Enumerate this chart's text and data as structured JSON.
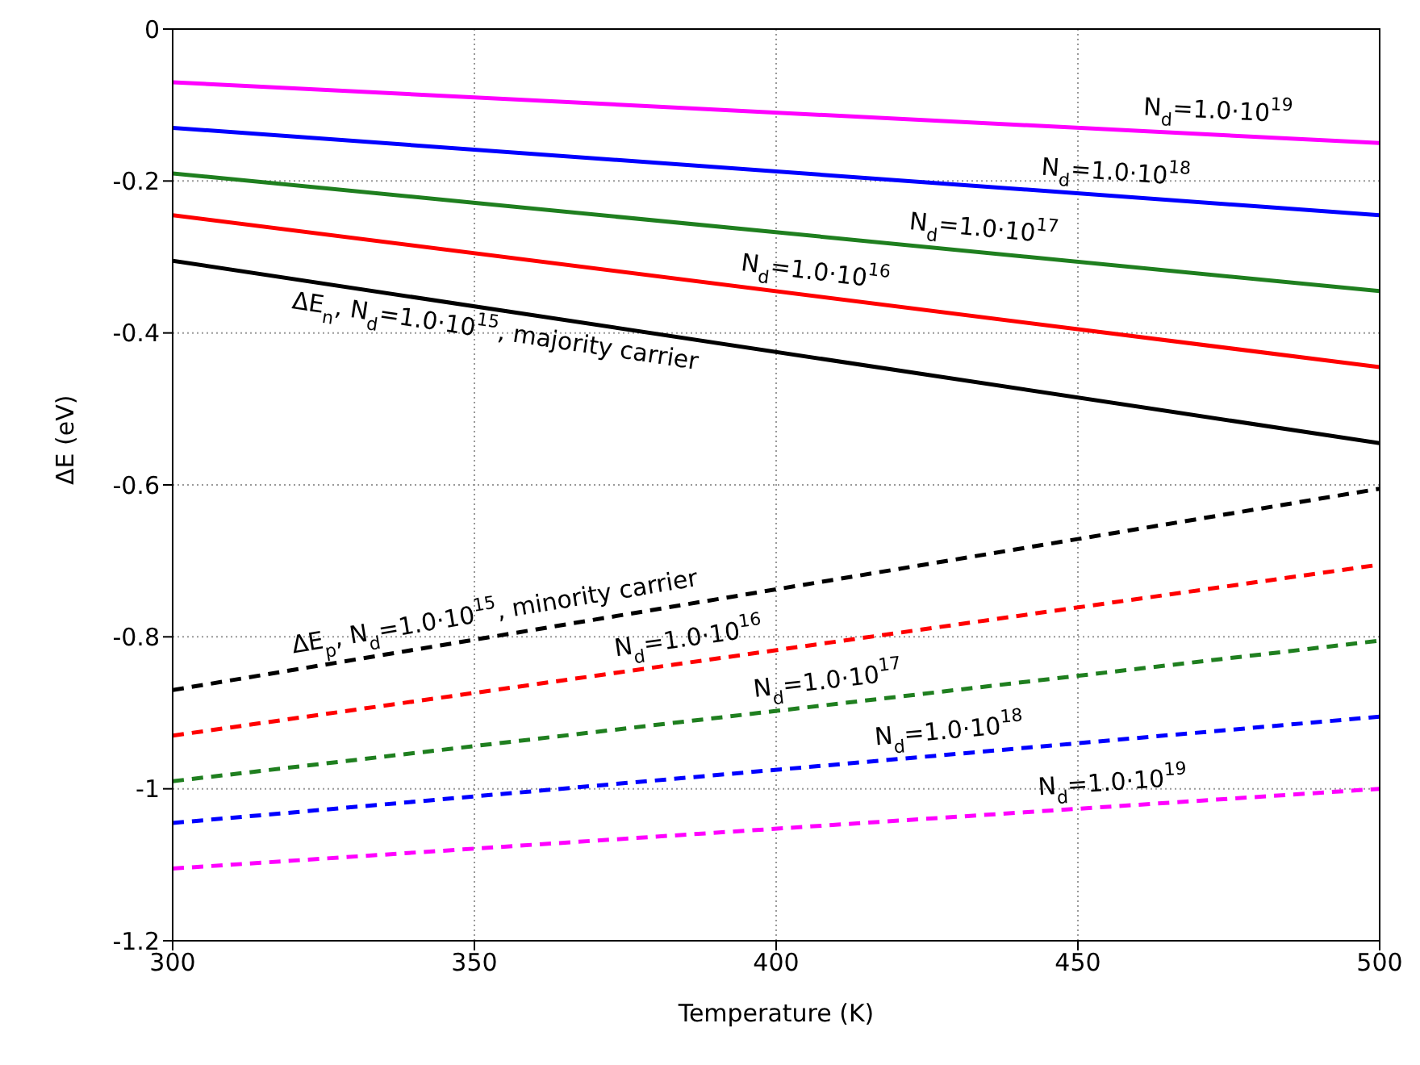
{
  "chart_data": {
    "type": "line",
    "xlabel": "Temperature (K)",
    "ylabel": "ΔE (eV)",
    "xlim": [
      300,
      500
    ],
    "ylim": [
      -1.2,
      0
    ],
    "xticks": [
      300,
      350,
      400,
      450,
      500
    ],
    "yticks": [
      -1.2,
      -1,
      -0.8,
      -0.6,
      -0.4,
      -0.2,
      0
    ],
    "grid": true,
    "legend": false,
    "marker": "none",
    "x": [
      300,
      500
    ],
    "series": [
      {
        "color": "#ff00ff",
        "line_style": "solid",
        "values": [
          -0.07,
          -0.15
        ]
      },
      {
        "color": "#0000ff",
        "line_style": "solid",
        "values": [
          -0.13,
          -0.245
        ]
      },
      {
        "color": "#1f7f1f",
        "line_style": "solid",
        "values": [
          -0.19,
          -0.345
        ]
      },
      {
        "color": "#ff0000",
        "line_style": "solid",
        "values": [
          -0.245,
          -0.445
        ]
      },
      {
        "color": "#000000",
        "line_style": "solid",
        "values": [
          -0.305,
          -0.545
        ]
      },
      {
        "color": "#000000",
        "line_style": "dashed",
        "values": [
          -0.87,
          -0.605
        ]
      },
      {
        "color": "#ff0000",
        "line_style": "dashed",
        "values": [
          -0.93,
          -0.705
        ]
      },
      {
        "color": "#1f7f1f",
        "line_style": "dashed",
        "values": [
          -0.99,
          -0.805
        ]
      },
      {
        "color": "#0000ff",
        "line_style": "dashed",
        "values": [
          -1.045,
          -0.905
        ]
      },
      {
        "color": "#ff00ff",
        "line_style": "dashed",
        "values": [
          -1.105,
          -1.0
        ]
      }
    ],
    "annotations": [
      {
        "text": "N$_{d}$=1.0·10$^{19}$",
        "x": 473,
        "y": -0.139
      },
      {
        "text": "N$_{d}$=1.0·10$^{18}$",
        "x": 456,
        "y": -0.22
      },
      {
        "text": "N$_{d}$=1.0·10$^{17}$",
        "x": 434,
        "y": -0.294
      },
      {
        "text": "N$_{d}$=1.0·10$^{16}$",
        "x": 406,
        "y": -0.351
      },
      {
        "text": "ΔE$_{n}$,  N$_{d}$=1.0·10$^{15}$, majority carrier",
        "x": 354,
        "y": -0.37
      },
      {
        "text": "ΔE$_{p}$,  N$_{d}$=1.0·10$^{15}$, minority carrier",
        "x": 354,
        "y": -0.798
      },
      {
        "text": "N$_{d}$=1.0·10$^{16}$",
        "x": 386,
        "y": -0.833
      },
      {
        "text": "N$_{d}$=1.0·10$^{17}$",
        "x": 409,
        "y": -0.889
      },
      {
        "text": "N$_{d}$=1.0·10$^{18}$",
        "x": 429,
        "y": -0.955
      },
      {
        "text": "N$_{d}$=1.0·10$^{19}$",
        "x": 456,
        "y": -1.023
      }
    ]
  }
}
